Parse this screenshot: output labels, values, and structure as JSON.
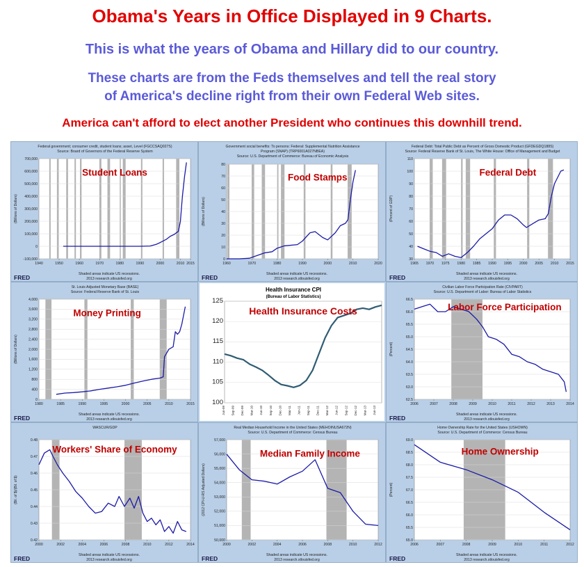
{
  "header": {
    "title": "Obama's Years in Office Displayed in 9 Charts.",
    "subtitle": "This is what the years of Obama and Hillary did to our country.",
    "description_line1": "These charts are from the Feds themselves and tell the real story",
    "description_line2": "of America's decline right from their own Federal Web sites.",
    "warning": "America can't afford to elect another President who continues this downhill trend."
  },
  "colors": {
    "title_red": "#e00000",
    "subtitle_blue": "#5a5ad8",
    "panel_bg": "#b9cfe7",
    "line_blue": "#1a1aa8",
    "recession_gray": "#b4b4b4",
    "annotation_red": "#c00000"
  },
  "chart_data": [
    {
      "type": "line",
      "overlay_label": "Student Loans",
      "source_title": "Federal government; consumer credit, student loans; asset, Level (FGCCSAQ027S)",
      "source_line": "Source: Board of Governors of the Federal Reserve System",
      "ylabel": "(Billions of Dollars)",
      "ylim": [
        -100000,
        700000
      ],
      "yticks": [
        -100000,
        0,
        100000,
        200000,
        300000,
        400000,
        500000,
        600000,
        700000
      ],
      "ytick_labels": [
        "-100,000",
        "0",
        "100,000",
        "200,000",
        "300,000",
        "400,000",
        "500,000",
        "600,000",
        "700,000"
      ],
      "xlim": [
        1940,
        2015
      ],
      "xticks": [
        1940,
        1950,
        1960,
        1970,
        1980,
        1990,
        2000,
        2010,
        2015
      ],
      "recessions": [
        [
          1945.1,
          1945.8
        ],
        [
          1948.9,
          1949.8
        ],
        [
          1953.5,
          1954.4
        ],
        [
          1957.6,
          1958.3
        ],
        [
          1960.3,
          1961.1
        ],
        [
          1969.9,
          1970.9
        ],
        [
          1973.9,
          1975.2
        ],
        [
          1980.0,
          1980.5
        ],
        [
          1981.5,
          1982.9
        ],
        [
          1990.5,
          1991.2
        ],
        [
          2001.2,
          2001.9
        ],
        [
          2007.9,
          2009.5
        ]
      ],
      "series": [
        {
          "x": [
            1952,
            1960,
            1970,
            1980,
            1990,
            1995,
            1998,
            2000,
            2003,
            2005,
            2007,
            2009,
            2010,
            2010.5,
            2011,
            2012,
            2013
          ],
          "values": [
            0,
            0,
            0,
            0,
            0,
            2000,
            15000,
            30000,
            55000,
            80000,
            95000,
            120000,
            200000,
            300000,
            400000,
            550000,
            670000
          ]
        }
      ],
      "fred_label": "FRED",
      "footer": [
        "Shaded areas indicate US recessions.",
        "2013 research.stlouisfed.org"
      ]
    },
    {
      "type": "line",
      "overlay_label": "Food Stamps",
      "source_title": "Government social benefits: To persons: Federal: Supplemental Nutrition Assistance",
      "source_title2": "Program (SNAP) (TRP6001A027NBEA)",
      "source_line": "Source: U.S. Department of Commerce: Bureau of Economic Analysis",
      "ylabel": "(Billions of Dollars)",
      "ylim": [
        0,
        80
      ],
      "yticks": [
        0,
        10,
        20,
        30,
        40,
        50,
        60,
        70,
        80
      ],
      "ytick_labels": [
        "0",
        "10",
        "20",
        "30",
        "40",
        "50",
        "60",
        "70",
        "80"
      ],
      "xlim": [
        1960,
        2020
      ],
      "xticks": [
        1960,
        1970,
        1980,
        1990,
        2000,
        2010,
        2020
      ],
      "recessions": [
        [
          1960.3,
          1961.1
        ],
        [
          1969.9,
          1970.9
        ],
        [
          1973.9,
          1975.2
        ],
        [
          1980.0,
          1980.5
        ],
        [
          1981.5,
          1982.9
        ],
        [
          1990.5,
          1991.2
        ],
        [
          2001.2,
          2001.9
        ],
        [
          2007.9,
          2009.5
        ]
      ],
      "series": [
        {
          "x": [
            1960,
            1965,
            1969,
            1971,
            1975,
            1978,
            1980,
            1983,
            1988,
            1990,
            1993,
            1995,
            1998,
            2000,
            2003,
            2005,
            2007,
            2008,
            2009,
            2010,
            2011
          ],
          "values": [
            0,
            0,
            0.5,
            2,
            5,
            6,
            9,
            11,
            12,
            15,
            22,
            23,
            18,
            16,
            22,
            28,
            30,
            33,
            50,
            65,
            75
          ]
        }
      ],
      "fred_label": "FRED",
      "footer": [
        "Shaded areas indicate US recessions.",
        "2013 research.stlouisfed.org"
      ]
    },
    {
      "type": "line",
      "overlay_label": "Federal Debt",
      "source_title": "Federal Debt: Total Public Debt as Percent of Gross Domestic Product (GFDEGDQ188S)",
      "source_line": "Source: Federal Reserve Bank of St. Louis, The White House: Office of Management and Budget",
      "ylabel": "(Percent of GDP)",
      "ylim": [
        30,
        110
      ],
      "yticks": [
        30,
        40,
        50,
        60,
        70,
        80,
        90,
        100,
        110
      ],
      "ytick_labels": [
        "30",
        "40",
        "50",
        "60",
        "70",
        "80",
        "90",
        "100",
        "110"
      ],
      "xlim": [
        1965,
        2015
      ],
      "xticks": [
        1965,
        1970,
        1975,
        1980,
        1985,
        1990,
        1995,
        2000,
        2005,
        2010,
        2015
      ],
      "recessions": [
        [
          1969.9,
          1970.9
        ],
        [
          1973.9,
          1975.2
        ],
        [
          1980.0,
          1980.5
        ],
        [
          1981.5,
          1982.9
        ],
        [
          1990.5,
          1991.2
        ],
        [
          2001.2,
          2001.9
        ],
        [
          2007.9,
          2009.5
        ]
      ],
      "series": [
        {
          "x": [
            1966,
            1968,
            1970,
            1972,
            1974,
            1976,
            1978,
            1980,
            1982,
            1984,
            1986,
            1988,
            1990,
            1992,
            1994,
            1996,
            1998,
            2000,
            2001,
            2003,
            2005,
            2007,
            2008,
            2009,
            2010,
            2011,
            2012,
            2013
          ],
          "values": [
            40,
            38,
            36,
            35,
            32,
            34,
            32,
            31,
            35,
            40,
            46,
            50,
            54,
            61,
            65,
            65,
            62,
            57,
            55,
            58,
            61,
            62,
            66,
            80,
            90,
            95,
            100,
            101
          ]
        }
      ],
      "fred_label": "FRED",
      "footer": [
        "Shaded areas indicate US recessions.",
        "2013 research.stlouisfed.org"
      ]
    },
    {
      "type": "line",
      "overlay_label": "Money Printing",
      "source_title": "St. Louis Adjusted Monetary Base (BASE)",
      "source_line": "Source: Federal Reserve Bank of St. Louis",
      "ylabel": "(Billions of Dollars)",
      "ylim": [
        0,
        4000
      ],
      "yticks": [
        0,
        400,
        800,
        1200,
        1600,
        2000,
        2400,
        2800,
        3200,
        3600,
        4000
      ],
      "ytick_labels": [
        "0",
        "400",
        "800",
        "1,200",
        "1,600",
        "2,000",
        "2,400",
        "2,800",
        "3,200",
        "3,600",
        "4,000"
      ],
      "xlim": [
        1980,
        2015
      ],
      "xticks": [
        1980,
        1985,
        1990,
        1995,
        2000,
        2005,
        2010,
        2015
      ],
      "recessions": [
        [
          1981.5,
          1982.9
        ],
        [
          1990.5,
          1991.2
        ],
        [
          2001.2,
          2001.9
        ],
        [
          2007.9,
          2009.5
        ]
      ],
      "series": [
        {
          "x": [
            1984,
            1986,
            1988,
            1990,
            1992,
            1994,
            1996,
            1998,
            2000,
            2002,
            2004,
            2006,
            2008,
            2008.7,
            2009,
            2010,
            2011,
            2011.5,
            2012,
            2012.5,
            2013,
            2013.8
          ],
          "values": [
            200,
            250,
            270,
            300,
            340,
            400,
            450,
            500,
            560,
            650,
            730,
            800,
            850,
            900,
            1700,
            2000,
            2100,
            2700,
            2600,
            2700,
            3000,
            3700
          ]
        }
      ],
      "fred_label": "FRED",
      "footer": [
        "Shaded areas indicate US recessions.",
        "2013 research.stlouisfed.org"
      ]
    },
    {
      "type": "line",
      "overlay_label": "Health Insurance Costs",
      "title": "Health Insurance CPI",
      "subtitle": "(Bureau of Labor Statistics)",
      "ylim": [
        100,
        125
      ],
      "yticks": [
        100,
        105,
        110,
        115,
        120,
        125
      ],
      "ytick_labels": [
        "100",
        "105",
        "110",
        "115",
        "120",
        "125"
      ],
      "xlim": [
        0,
        50
      ],
      "xticks": [
        0,
        3,
        6,
        9,
        12,
        15,
        18,
        21,
        24,
        27,
        30,
        33,
        36,
        39,
        42,
        45,
        48
      ],
      "xtick_labels": [
        "Jun-09",
        "Sep-09",
        "Dec-09",
        "Mar-10",
        "Jun-10",
        "Sep-10",
        "Dec-10",
        "Mar-11",
        "Jun-11",
        "Sep-11",
        "Dec-11",
        "Mar-12",
        "Jun-12",
        "Sep-12",
        "Dec-12",
        "Mar-13",
        "Jun-13"
      ],
      "series": [
        {
          "x": [
            0,
            2,
            4,
            6,
            8,
            10,
            12,
            14,
            16,
            18,
            20,
            22,
            24,
            26,
            28,
            30,
            32,
            34,
            36,
            38,
            40,
            42,
            44,
            46,
            48,
            50
          ],
          "values": [
            112,
            111.6,
            111,
            110.6,
            109.5,
            108.8,
            108,
            106.8,
            105.5,
            104.5,
            104.2,
            103.8,
            104.3,
            105.5,
            108,
            112,
            116,
            119,
            121,
            121.5,
            122,
            123,
            123.3,
            123,
            123.6,
            124
          ]
        }
      ]
    },
    {
      "type": "line",
      "overlay_label": "Labor Force Participation",
      "source_title": "Civilian Labor Force Participation Rate (CIVPART)",
      "source_line": "Source: U.S. Department of Labor: Bureau of Labor Statistics",
      "ylabel": "(Percent)",
      "ylim": [
        62.5,
        66.5
      ],
      "yticks": [
        62.5,
        63.0,
        63.5,
        64.0,
        64.5,
        65.0,
        65.5,
        66.0,
        66.5
      ],
      "ytick_labels": [
        "62.5",
        "63.0",
        "63.5",
        "64.0",
        "64.5",
        "65.0",
        "65.5",
        "66.0",
        "66.5"
      ],
      "xlim": [
        2006,
        2014
      ],
      "xticks": [
        2006,
        2007,
        2008,
        2009,
        2010,
        2011,
        2012,
        2013,
        2014
      ],
      "recessions": [
        [
          2007.9,
          2009.5
        ]
      ],
      "series": [
        {
          "x": [
            2006.0,
            2006.4,
            2006.8,
            2007.2,
            2007.6,
            2008.0,
            2008.4,
            2008.8,
            2009.2,
            2009.5,
            2009.8,
            2010.2,
            2010.6,
            2011.0,
            2011.4,
            2011.8,
            2012.2,
            2012.6,
            2013.0,
            2013.4,
            2013.7,
            2013.8
          ],
          "values": [
            66.1,
            66.2,
            66.3,
            66.0,
            66.0,
            66.2,
            66.1,
            66.0,
            65.7,
            65.4,
            65.0,
            64.9,
            64.7,
            64.3,
            64.2,
            64.0,
            63.9,
            63.7,
            63.6,
            63.5,
            63.2,
            62.8
          ]
        }
      ],
      "fred_label": "FRED",
      "footer": [
        "Shaded areas indicate US recessions.",
        "2013 research.stlouisfed.org"
      ]
    },
    {
      "type": "line",
      "overlay_label": "Workers' Share of Economy",
      "source_title": "WASCUR/GDP",
      "ylabel": "(Bil. of $)/(Bil. of $)",
      "ylim": [
        0.42,
        0.48
      ],
      "yticks": [
        0.42,
        0.43,
        0.44,
        0.45,
        0.46,
        0.47,
        0.48
      ],
      "ytick_labels": [
        "0.42",
        "0.43",
        "0.44",
        "0.45",
        "0.46",
        "0.47",
        "0.48"
      ],
      "xlim": [
        2000,
        2014
      ],
      "xticks": [
        2000,
        2002,
        2004,
        2006,
        2008,
        2010,
        2012,
        2014
      ],
      "xtick_labels": [
        "2000",
        "2002",
        "2004",
        "2006",
        "2008",
        "2010",
        "2012",
        "2014"
      ],
      "recessions": [
        [
          2001.2,
          2001.9
        ],
        [
          2007.9,
          2009.5
        ]
      ],
      "series": [
        {
          "x": [
            2000.0,
            2000.5,
            2001.0,
            2001.3,
            2001.7,
            2002.2,
            2002.8,
            2003.4,
            2004.0,
            2004.6,
            2005.2,
            2005.8,
            2006.4,
            2007.0,
            2007.4,
            2007.9,
            2008.4,
            2008.8,
            2009.2,
            2009.6,
            2010.0,
            2010.4,
            2010.8,
            2011.2,
            2011.6,
            2012.0,
            2012.4,
            2012.8,
            2013.2,
            2013.6
          ],
          "values": [
            0.465,
            0.472,
            0.474,
            0.47,
            0.465,
            0.46,
            0.455,
            0.449,
            0.445,
            0.44,
            0.436,
            0.437,
            0.442,
            0.44,
            0.446,
            0.44,
            0.445,
            0.439,
            0.446,
            0.436,
            0.431,
            0.433,
            0.429,
            0.432,
            0.425,
            0.428,
            0.424,
            0.431,
            0.426,
            0.425
          ]
        }
      ],
      "fred_label": "FRED",
      "footer": [
        "Shaded areas indicate US recessions.",
        "2013 research.stlouisfed.org"
      ]
    },
    {
      "type": "line",
      "overlay_label": "Median Family Income",
      "source_title": "Real Median Household Income in the United States (MEHOINUSA672N)",
      "source_line": "Source: U.S. Department of Commerce: Census Bureau",
      "ylabel": "(2012 CPI-U-RS Adjusted Dollars)",
      "ylim": [
        50000,
        57000
      ],
      "yticks": [
        50000,
        51000,
        52000,
        53000,
        54000,
        55000,
        56000,
        57000
      ],
      "ytick_labels": [
        "50,000",
        "51,000",
        "52,000",
        "53,000",
        "54,000",
        "55,000",
        "56,000",
        "57,000"
      ],
      "xlim": [
        2000,
        2012
      ],
      "xticks": [
        2000,
        2002,
        2004,
        2006,
        2008,
        2010,
        2012
      ],
      "recessions": [
        [
          2001.2,
          2001.9
        ],
        [
          2007.9,
          2009.5
        ]
      ],
      "series": [
        {
          "x": [
            2000,
            2001,
            2002,
            2003,
            2004,
            2005,
            2006,
            2007,
            2008,
            2009,
            2010,
            2011,
            2012
          ],
          "values": [
            55987,
            54900,
            54200,
            54100,
            53900,
            54400,
            54800,
            55600,
            53600,
            53300,
            52000,
            51100,
            51000
          ]
        }
      ],
      "fred_label": "FRED",
      "footer": [
        "Shaded areas indicate US recessions.",
        "2013 research.stlouisfed.org"
      ]
    },
    {
      "type": "line",
      "overlay_label": "Home Ownership",
      "source_title": "Home Ownership Rate for the United States (USHOWN)",
      "source_line": "Source: U.S. Department of Commerce: Census Bureau",
      "ylabel": "(Percent)",
      "ylim": [
        65.0,
        69.0
      ],
      "yticks": [
        65.0,
        65.5,
        66.0,
        66.5,
        67.0,
        67.5,
        68.0,
        68.5,
        69.0
      ],
      "ytick_labels": [
        "65.0",
        "65.5",
        "66.0",
        "66.5",
        "67.0",
        "67.5",
        "68.0",
        "68.5",
        "69.0"
      ],
      "xlim": [
        2006,
        2012
      ],
      "xticks": [
        2006,
        2007,
        2008,
        2009,
        2010,
        2011,
        2012
      ],
      "recessions": [
        [
          2007.9,
          2009.5
        ]
      ],
      "series": [
        {
          "x": [
            2006,
            2007,
            2008,
            2009,
            2010,
            2011,
            2012
          ],
          "values": [
            68.8,
            68.1,
            67.8,
            67.4,
            66.9,
            66.1,
            65.4
          ]
        }
      ],
      "fred_label": "FRED",
      "footer": [
        "Shaded areas indicate US recessions.",
        "2013 research.stlouisfed.org"
      ]
    }
  ]
}
